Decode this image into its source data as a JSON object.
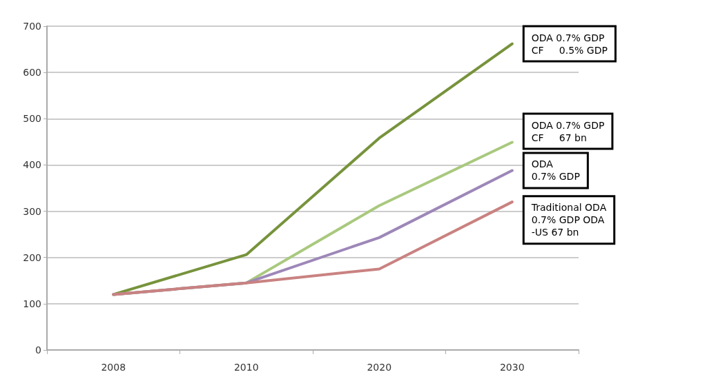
{
  "chart_data": {
    "type": "line",
    "categories": [
      "2008",
      "2010",
      "2020",
      "2030"
    ],
    "series": [
      {
        "name": "ODA 0.7% GDP\nCF     0.5% GDP",
        "color": "#77933c",
        "values": [
          120,
          206,
          458,
          662
        ]
      },
      {
        "name": "ODA 0.7% GDP\nCF     67 bn",
        "color": "#a9c97e",
        "values": [
          120,
          145,
          312,
          449
        ]
      },
      {
        "name": "ODA\n0.7% GDP",
        "color": "#9d87b8",
        "values": [
          120,
          145,
          243,
          388
        ]
      },
      {
        "name": "Traditional ODA\n0.7% GDP ODA\n-US 67 bn",
        "color": "#c98281",
        "values": [
          120,
          145,
          175,
          320
        ]
      }
    ],
    "ylim": [
      0,
      700
    ],
    "yticks": [
      0,
      100,
      200,
      300,
      400,
      500,
      600,
      700
    ],
    "grid": "y",
    "legend": false,
    "marker": "none",
    "line_style": "solid"
  }
}
